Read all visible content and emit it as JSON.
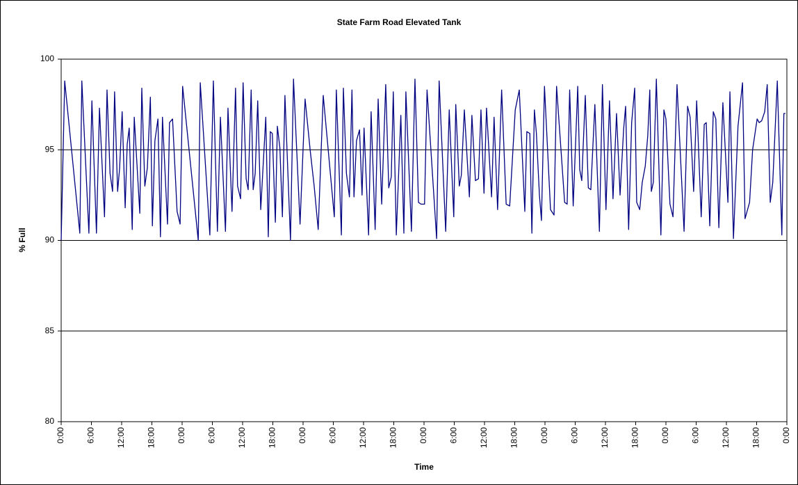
{
  "chart_data": {
    "type": "line",
    "title": "State Farm Road Elevated Tank",
    "x_label": "Time",
    "y_label": "% Full",
    "xlim": [
      0,
      144
    ],
    "xticks": [
      {
        "value": 0,
        "label": "0:00"
      },
      {
        "value": 6,
        "label": "6:00"
      },
      {
        "value": 12,
        "label": "12:00"
      },
      {
        "value": 18,
        "label": "18:00"
      },
      {
        "value": 24,
        "label": "0:00"
      },
      {
        "value": 30,
        "label": "6:00"
      },
      {
        "value": 36,
        "label": "12:00"
      },
      {
        "value": 42,
        "label": "18:00"
      },
      {
        "value": 48,
        "label": "0:00"
      },
      {
        "value": 54,
        "label": "6:00"
      },
      {
        "value": 60,
        "label": "12:00"
      },
      {
        "value": 66,
        "label": "18:00"
      },
      {
        "value": 72,
        "label": "0:00"
      },
      {
        "value": 78,
        "label": "6:00"
      },
      {
        "value": 84,
        "label": "12:00"
      },
      {
        "value": 90,
        "label": "18:00"
      },
      {
        "value": 96,
        "label": "0:00"
      },
      {
        "value": 102,
        "label": "6:00"
      },
      {
        "value": 108,
        "label": "12:00"
      },
      {
        "value": 114,
        "label": "18:00"
      },
      {
        "value": 120,
        "label": "0:00"
      },
      {
        "value": 126,
        "label": "6:00"
      },
      {
        "value": 132,
        "label": "12:00"
      },
      {
        "value": 138,
        "label": "18:00"
      },
      {
        "value": 144,
        "label": "0:00"
      }
    ],
    "ylim": [
      80,
      100
    ],
    "yticks": [
      80,
      85,
      90,
      95,
      100
    ],
    "grid": true,
    "x": [
      0,
      0.7,
      3.7,
      4.1,
      5.5,
      6.1,
      7.0,
      7.6,
      8.6,
      9.1,
      9.7,
      10.2,
      10.6,
      11.2,
      11.6,
      12.1,
      12.7,
      13.1,
      13.5,
      14.1,
      14.5,
      15.6,
      16.0,
      16.6,
      17.1,
      17.7,
      18.1,
      18.6,
      19.2,
      19.7,
      20.1,
      21.1,
      21.5,
      22.1,
      23.0,
      23.6,
      24.1,
      27.2,
      27.6,
      29.5,
      30.2,
      31.0,
      31.6,
      32.6,
      33.1,
      33.9,
      34.6,
      35.0,
      35.6,
      36.1,
      36.7,
      37.1,
      37.7,
      38.1,
      38.5,
      39.0,
      39.6,
      40.6,
      41.1,
      41.5,
      41.9,
      42.5,
      42.9,
      43.4,
      43.9,
      44.4,
      45.5,
      46.1,
      47.4,
      48.4,
      49.4,
      50.2,
      51.0,
      52.0,
      54.2,
      54.6,
      55.6,
      56.0,
      56.6,
      57.2,
      57.7,
      58.1,
      58.6,
      59.2,
      59.7,
      60.1,
      61.0,
      61.5,
      62.3,
      62.9,
      63.6,
      64.4,
      65.0,
      65.5,
      65.9,
      66.5,
      67.4,
      68.0,
      68.4,
      69.5,
      70.2,
      70.9,
      71.4,
      72.1,
      72.6,
      74.5,
      75.0,
      76.3,
      77.0,
      77.9,
      78.3,
      79.0,
      79.4,
      80.0,
      81.0,
      81.5,
      82.2,
      82.8,
      83.3,
      83.9,
      84.4,
      85.4,
      85.9,
      86.6,
      87.4,
      88.3,
      89.0,
      90.1,
      90.9,
      92.0,
      92.4,
      93.0,
      93.4,
      93.9,
      94.3,
      94.9,
      95.3,
      95.9,
      97.1,
      97.8,
      98.3,
      99.9,
      100.4,
      100.9,
      101.6,
      102.5,
      102.9,
      103.3,
      104.0,
      104.6,
      105.1,
      105.9,
      106.8,
      107.4,
      108.1,
      108.8,
      109.5,
      110.2,
      110.9,
      111.6,
      112.0,
      112.6,
      113.2,
      113.8,
      114.2,
      114.8,
      115.3,
      115.9,
      116.4,
      116.8,
      117.1,
      117.5,
      118.1,
      119.0,
      119.6,
      120.0,
      120.8,
      121.4,
      122.2,
      123.6,
      124.3,
      124.8,
      125.5,
      126.1,
      127.0,
      127.6,
      128.0,
      128.7,
      129.4,
      129.9,
      130.5,
      131.3,
      132.3,
      132.7,
      133.4,
      134.3,
      135.2,
      135.7,
      136.6,
      137.2,
      138.1,
      138.5,
      139.0,
      139.6,
      140.1,
      140.7,
      141.2,
      142.1,
      143.0,
      143.4,
      143.7
    ],
    "series": [
      {
        "name": "% Full",
        "color": "#000080",
        "values": [
          90,
          98.8,
          90.4,
          98.8,
          90.4,
          97.7,
          90.4,
          97.3,
          91.3,
          98.3,
          93.7,
          92.7,
          98.2,
          92.7,
          94,
          97.1,
          91.8,
          95.3,
          96.2,
          90.6,
          96.8,
          91.5,
          98.4,
          93,
          94,
          97.9,
          90.8,
          95.5,
          96.7,
          90.2,
          96.8,
          90.9,
          96.5,
          96.7,
          91.6,
          90.9,
          98.5,
          90,
          98.7,
          90.3,
          98.8,
          90.5,
          96.8,
          90.5,
          97.3,
          91.6,
          98.4,
          93,
          92.3,
          98.7,
          93.4,
          92.8,
          98.3,
          92.8,
          93.7,
          97.7,
          91.7,
          96.8,
          90.2,
          96,
          95.9,
          91,
          96.3,
          95.1,
          91.3,
          98,
          90,
          98.9,
          90.9,
          97.8,
          95,
          93,
          90.6,
          98,
          91.3,
          98.3,
          90.3,
          98.4,
          93.7,
          92.4,
          98.3,
          92.4,
          95.5,
          96.1,
          92.5,
          96.2,
          90.3,
          97.1,
          90.6,
          97.8,
          92,
          98.6,
          92.9,
          93.5,
          98.2,
          90.3,
          96.9,
          90.4,
          98.2,
          90.5,
          98.9,
          92.1,
          92,
          92,
          98.3,
          90.1,
          98.8,
          90.5,
          97.2,
          91.3,
          97.5,
          93,
          93.6,
          97.2,
          92.4,
          96.9,
          93.3,
          93.4,
          97.2,
          92.6,
          97.3,
          92.4,
          96.8,
          91.7,
          98.3,
          92,
          91.9,
          97.2,
          98.3,
          91.6,
          96,
          95.9,
          90.4,
          97.2,
          95.9,
          92.5,
          91.1,
          98.5,
          91.7,
          91.4,
          98.5,
          92.1,
          92,
          98.3,
          91.9,
          98.5,
          93.9,
          93.3,
          98,
          92.9,
          92.8,
          97.5,
          90.5,
          98.6,
          91.7,
          97.7,
          92.3,
          97,
          92.5,
          96.1,
          97.4,
          90.6,
          96.5,
          98.4,
          92.1,
          91.7,
          93.2,
          94.1,
          95.8,
          98.3,
          92.7,
          93.2,
          98.9,
          90.3,
          97.2,
          96.7,
          92,
          91.3,
          98.6,
          90.5,
          97.4,
          96.8,
          92.7,
          97.7,
          91.3,
          96.4,
          96.5,
          90.8,
          97.1,
          96.7,
          90.7,
          97.6,
          92.1,
          98.2,
          90.1,
          96.3,
          98.7,
          91.2,
          92.1,
          95,
          96.7,
          96.5,
          96.6,
          97.1,
          98.6,
          92.1,
          93.2,
          98.8,
          90.3,
          97,
          97
        ]
      }
    ]
  }
}
